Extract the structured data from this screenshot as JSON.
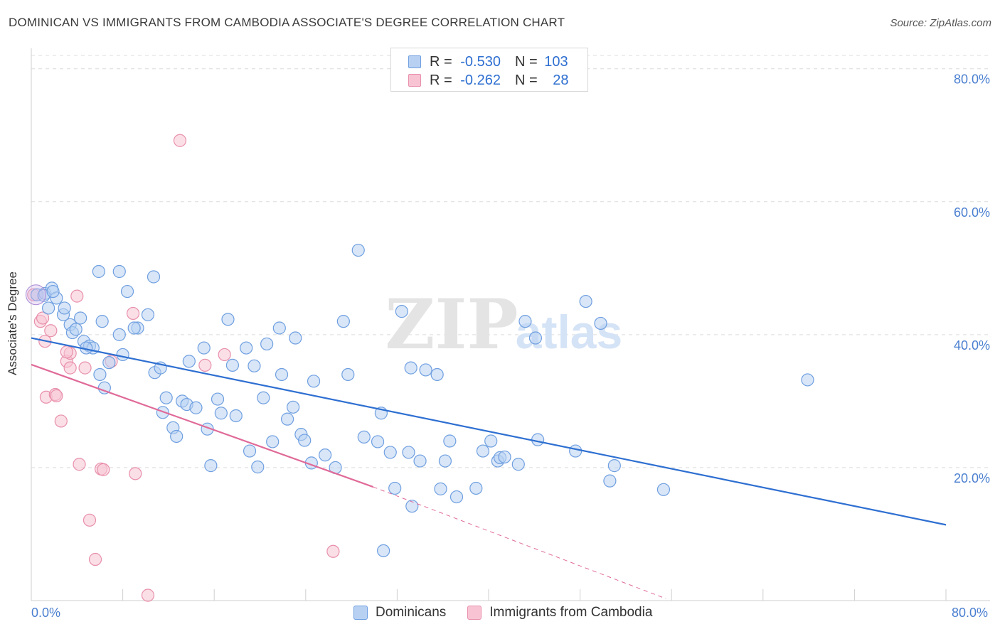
{
  "title": "DOMINICAN VS IMMIGRANTS FROM CAMBODIA ASSOCIATE'S DEGREE CORRELATION CHART",
  "source": "Source: ZipAtlas.com",
  "watermark": {
    "zip": "ZIP",
    "atlas": "atlas"
  },
  "colors": {
    "blue_fill": "#b8d1f3",
    "blue_stroke": "#6f9fe0",
    "blue_line": "#2e6fd1",
    "pink_fill": "#f8c4d4",
    "pink_stroke": "#e88fab",
    "pink_line": "#e06a98",
    "grid": "#dcdcdc",
    "axis_text": "#4a7fd0"
  },
  "legend": {
    "rows": [
      {
        "r_label": "R = ",
        "r_value": "-0.530",
        "n_label": "N = ",
        "n_value": "103"
      },
      {
        "r_label": "R = ",
        "r_value": "-0.262",
        "n_label": "N = ",
        "n_value": "28"
      }
    ]
  },
  "bottom_legend": [
    "Dominicans",
    "Immigrants from Cambodia"
  ],
  "chart_data": {
    "type": "scatter",
    "title": "DOMINICAN VS IMMIGRANTS FROM CAMBODIA ASSOCIATE'S DEGREE CORRELATION CHART",
    "xlabel": "",
    "ylabel": "Associate's Degree",
    "xlim": [
      0,
      80
    ],
    "ylim": [
      0,
      82
    ],
    "x_tick_labels": [
      "0.0%",
      "80.0%"
    ],
    "y_ticks": [
      20,
      40,
      60,
      80
    ],
    "y_tick_labels": [
      "20.0%",
      "40.0%",
      "60.0%",
      "80.0%"
    ],
    "grid": true,
    "legend_position": "top-center",
    "series": [
      {
        "name": "Dominicans",
        "color": "#6f9fe0",
        "trend": {
          "x": [
            0,
            80
          ],
          "y": [
            39.5,
            11.4
          ]
        },
        "points": [
          [
            0.5,
            46.0
          ],
          [
            1.2,
            46.2
          ],
          [
            1.8,
            47.0
          ],
          [
            2.2,
            45.5
          ],
          [
            1.5,
            44.0
          ],
          [
            2.8,
            43.0
          ],
          [
            2.9,
            44.0
          ],
          [
            4.3,
            42.5
          ],
          [
            3.4,
            41.5
          ],
          [
            3.6,
            40.3
          ],
          [
            3.9,
            40.8
          ],
          [
            4.6,
            39.0
          ],
          [
            5.1,
            38.3
          ],
          [
            5.4,
            38.0
          ],
          [
            4.8,
            38.0
          ],
          [
            6.0,
            34.0
          ],
          [
            6.4,
            32.0
          ],
          [
            6.8,
            35.8
          ],
          [
            6.2,
            42.0
          ],
          [
            7.7,
            40.0
          ],
          [
            8.0,
            37.0
          ],
          [
            9.3,
            41.0
          ],
          [
            9.0,
            41.0
          ],
          [
            10.2,
            43.0
          ],
          [
            8.4,
            46.5
          ],
          [
            10.8,
            34.3
          ],
          [
            11.3,
            35.0
          ],
          [
            11.5,
            28.3
          ],
          [
            11.8,
            30.5
          ],
          [
            12.4,
            26.0
          ],
          [
            12.7,
            24.7
          ],
          [
            13.2,
            30.0
          ],
          [
            13.6,
            29.5
          ],
          [
            13.8,
            36.0
          ],
          [
            14.4,
            29.0
          ],
          [
            15.1,
            38.0
          ],
          [
            15.4,
            25.8
          ],
          [
            15.7,
            20.3
          ],
          [
            16.3,
            30.3
          ],
          [
            16.6,
            28.2
          ],
          [
            17.2,
            42.3
          ],
          [
            17.6,
            35.4
          ],
          [
            17.9,
            27.8
          ],
          [
            18.8,
            38.0
          ],
          [
            19.1,
            22.5
          ],
          [
            19.5,
            35.3
          ],
          [
            19.8,
            20.1
          ],
          [
            20.3,
            30.5
          ],
          [
            20.6,
            38.6
          ],
          [
            21.1,
            23.9
          ],
          [
            21.7,
            41.0
          ],
          [
            21.9,
            34.0
          ],
          [
            22.4,
            27.3
          ],
          [
            22.9,
            29.1
          ],
          [
            23.1,
            39.5
          ],
          [
            23.6,
            25.0
          ],
          [
            23.9,
            24.1
          ],
          [
            24.5,
            20.7
          ],
          [
            24.7,
            33.0
          ],
          [
            25.7,
            21.9
          ],
          [
            26.6,
            20.0
          ],
          [
            27.3,
            42.0
          ],
          [
            27.7,
            34.0
          ],
          [
            28.6,
            52.7
          ],
          [
            29.1,
            24.6
          ],
          [
            30.3,
            23.9
          ],
          [
            30.6,
            28.2
          ],
          [
            30.8,
            7.5
          ],
          [
            31.4,
            22.3
          ],
          [
            31.8,
            16.9
          ],
          [
            32.4,
            43.5
          ],
          [
            33.0,
            22.3
          ],
          [
            33.2,
            35.0
          ],
          [
            33.3,
            14.2
          ],
          [
            34.0,
            21.0
          ],
          [
            34.5,
            34.7
          ],
          [
            35.5,
            34.0
          ],
          [
            35.8,
            16.8
          ],
          [
            36.2,
            21.0
          ],
          [
            36.6,
            24.0
          ],
          [
            37.2,
            15.6
          ],
          [
            38.9,
            16.9
          ],
          [
            39.5,
            22.5
          ],
          [
            40.2,
            24.0
          ],
          [
            40.8,
            21.0
          ],
          [
            41.0,
            21.5
          ],
          [
            41.4,
            21.6
          ],
          [
            42.6,
            20.5
          ],
          [
            43.2,
            42.0
          ],
          [
            44.1,
            39.5
          ],
          [
            44.3,
            24.2
          ],
          [
            47.6,
            22.5
          ],
          [
            48.5,
            45.0
          ],
          [
            49.8,
            41.7
          ],
          [
            50.6,
            18.0
          ],
          [
            51.0,
            20.3
          ],
          [
            55.3,
            16.7
          ],
          [
            67.9,
            33.2
          ],
          [
            7.7,
            49.5
          ],
          [
            5.9,
            49.5
          ],
          [
            10.7,
            48.7
          ],
          [
            1.1,
            45.9
          ],
          [
            1.9,
            46.5
          ]
        ]
      },
      {
        "name": "Immigrants from Cambodia",
        "color": "#e88fab",
        "trend": {
          "x": [
            0,
            29.9
          ],
          "y": [
            35.5,
            17.1
          ]
        },
        "trend_dashed": {
          "x": [
            29.9,
            55.5
          ],
          "y": [
            17.1,
            0.3
          ]
        },
        "points": [
          [
            0.2,
            46.0
          ],
          [
            0.8,
            42.0
          ],
          [
            1.0,
            42.5
          ],
          [
            1.2,
            39.0
          ],
          [
            1.7,
            40.6
          ],
          [
            3.1,
            36.0
          ],
          [
            3.4,
            37.2
          ],
          [
            3.4,
            35.0
          ],
          [
            1.3,
            30.6
          ],
          [
            2.1,
            31.0
          ],
          [
            2.2,
            30.8
          ],
          [
            2.6,
            27.0
          ],
          [
            3.1,
            37.4
          ],
          [
            4.0,
            45.8
          ],
          [
            4.2,
            20.5
          ],
          [
            4.7,
            35.0
          ],
          [
            5.1,
            12.1
          ],
          [
            5.6,
            6.2
          ],
          [
            6.1,
            19.8
          ],
          [
            6.3,
            19.7
          ],
          [
            7.0,
            36.0
          ],
          [
            8.9,
            43.2
          ],
          [
            9.1,
            19.1
          ],
          [
            10.2,
            0.8
          ],
          [
            13.0,
            69.2
          ],
          [
            15.2,
            35.4
          ],
          [
            16.9,
            37.0
          ],
          [
            26.4,
            7.4
          ]
        ]
      }
    ]
  }
}
